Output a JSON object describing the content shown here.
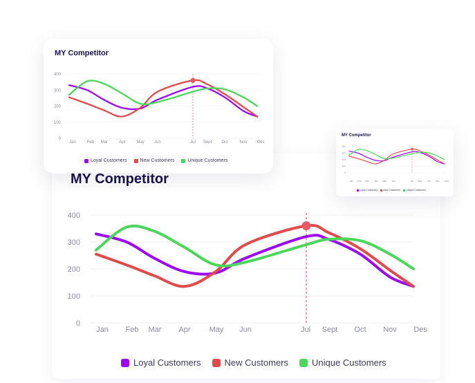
{
  "colors": {
    "loyal": "#9b08f2",
    "new": "#e04a4a",
    "unique": "#4bd75b",
    "title": "#16124a",
    "axis_text": "#8a8aa0",
    "grid": "#eceff3",
    "marker_line": "#e85a66"
  },
  "chart_data": [
    {
      "type": "line",
      "title": "MY Competitor",
      "categories": [
        "Jan",
        "Feb",
        "Mar",
        "Apr",
        "May",
        "Jun",
        "Jul",
        "Sept",
        "Oct",
        "Nov",
        "Des"
      ],
      "ylim": [
        0,
        400
      ],
      "yticks": [
        0,
        100,
        200,
        300,
        400
      ],
      "grid": true,
      "legend_position": "bottom",
      "highlight": {
        "series": "New Customers",
        "category": "Jul",
        "value": 360
      },
      "series": [
        {
          "name": "Loyal Customers",
          "color_key": "loyal",
          "values": [
            330,
            300,
            240,
            190,
            185,
            240,
            320,
            310,
            255,
            170,
            135
          ]
        },
        {
          "name": "New Customers",
          "color_key": "new",
          "values": [
            255,
            215,
            175,
            135,
            190,
            290,
            360,
            335,
            275,
            195,
            135
          ]
        },
        {
          "name": "Unique Customers",
          "color_key": "unique",
          "values": [
            270,
            355,
            340,
            280,
            215,
            225,
            290,
            310,
            305,
            255,
            200
          ]
        }
      ]
    },
    {
      "type": "line",
      "title": "MY Competitor",
      "categories": [
        "Jan",
        "Feb",
        "Mar",
        "Apr",
        "May",
        "Jun",
        "Jul",
        "Sept",
        "Oct",
        "Nov",
        "Des"
      ],
      "ylim": [
        0,
        400
      ],
      "yticks": [
        0,
        100,
        200,
        300,
        400
      ],
      "grid": true,
      "legend_position": "bottom",
      "highlight": {
        "series": "New Customers",
        "category": "Jul",
        "value": 360
      },
      "series": [
        {
          "name": "Loyal Customers",
          "color_key": "loyal",
          "values": [
            330,
            300,
            240,
            190,
            185,
            240,
            320,
            310,
            255,
            170,
            135
          ]
        },
        {
          "name": "New Customers",
          "color_key": "new",
          "values": [
            255,
            215,
            175,
            135,
            190,
            290,
            360,
            335,
            275,
            195,
            135
          ]
        },
        {
          "name": "Unique Customers",
          "color_key": "unique",
          "values": [
            270,
            355,
            340,
            280,
            215,
            225,
            290,
            310,
            305,
            255,
            200
          ]
        }
      ]
    },
    {
      "type": "line",
      "title": "MY Competitor",
      "categories": [
        "Jan",
        "Feb",
        "Mar",
        "Apr",
        "May",
        "Jun",
        "Jul",
        "Sept",
        "Oct",
        "Nov",
        "Des"
      ],
      "ylim": [
        0,
        400
      ],
      "yticks": [
        0,
        100,
        200,
        300,
        400
      ],
      "grid": true,
      "legend_position": "bottom",
      "highlight": {
        "series": "New Customers",
        "category": "Jul",
        "value": 360
      },
      "series": [
        {
          "name": "Loyal Customers",
          "color_key": "loyal",
          "values": [
            330,
            300,
            240,
            190,
            185,
            240,
            320,
            310,
            255,
            170,
            135
          ]
        },
        {
          "name": "New Customers",
          "color_key": "new",
          "values": [
            255,
            215,
            175,
            135,
            190,
            290,
            360,
            335,
            275,
            195,
            135
          ]
        },
        {
          "name": "Unique Customers",
          "color_key": "unique",
          "values": [
            270,
            355,
            340,
            280,
            215,
            225,
            290,
            310,
            305,
            255,
            200
          ]
        }
      ]
    }
  ]
}
